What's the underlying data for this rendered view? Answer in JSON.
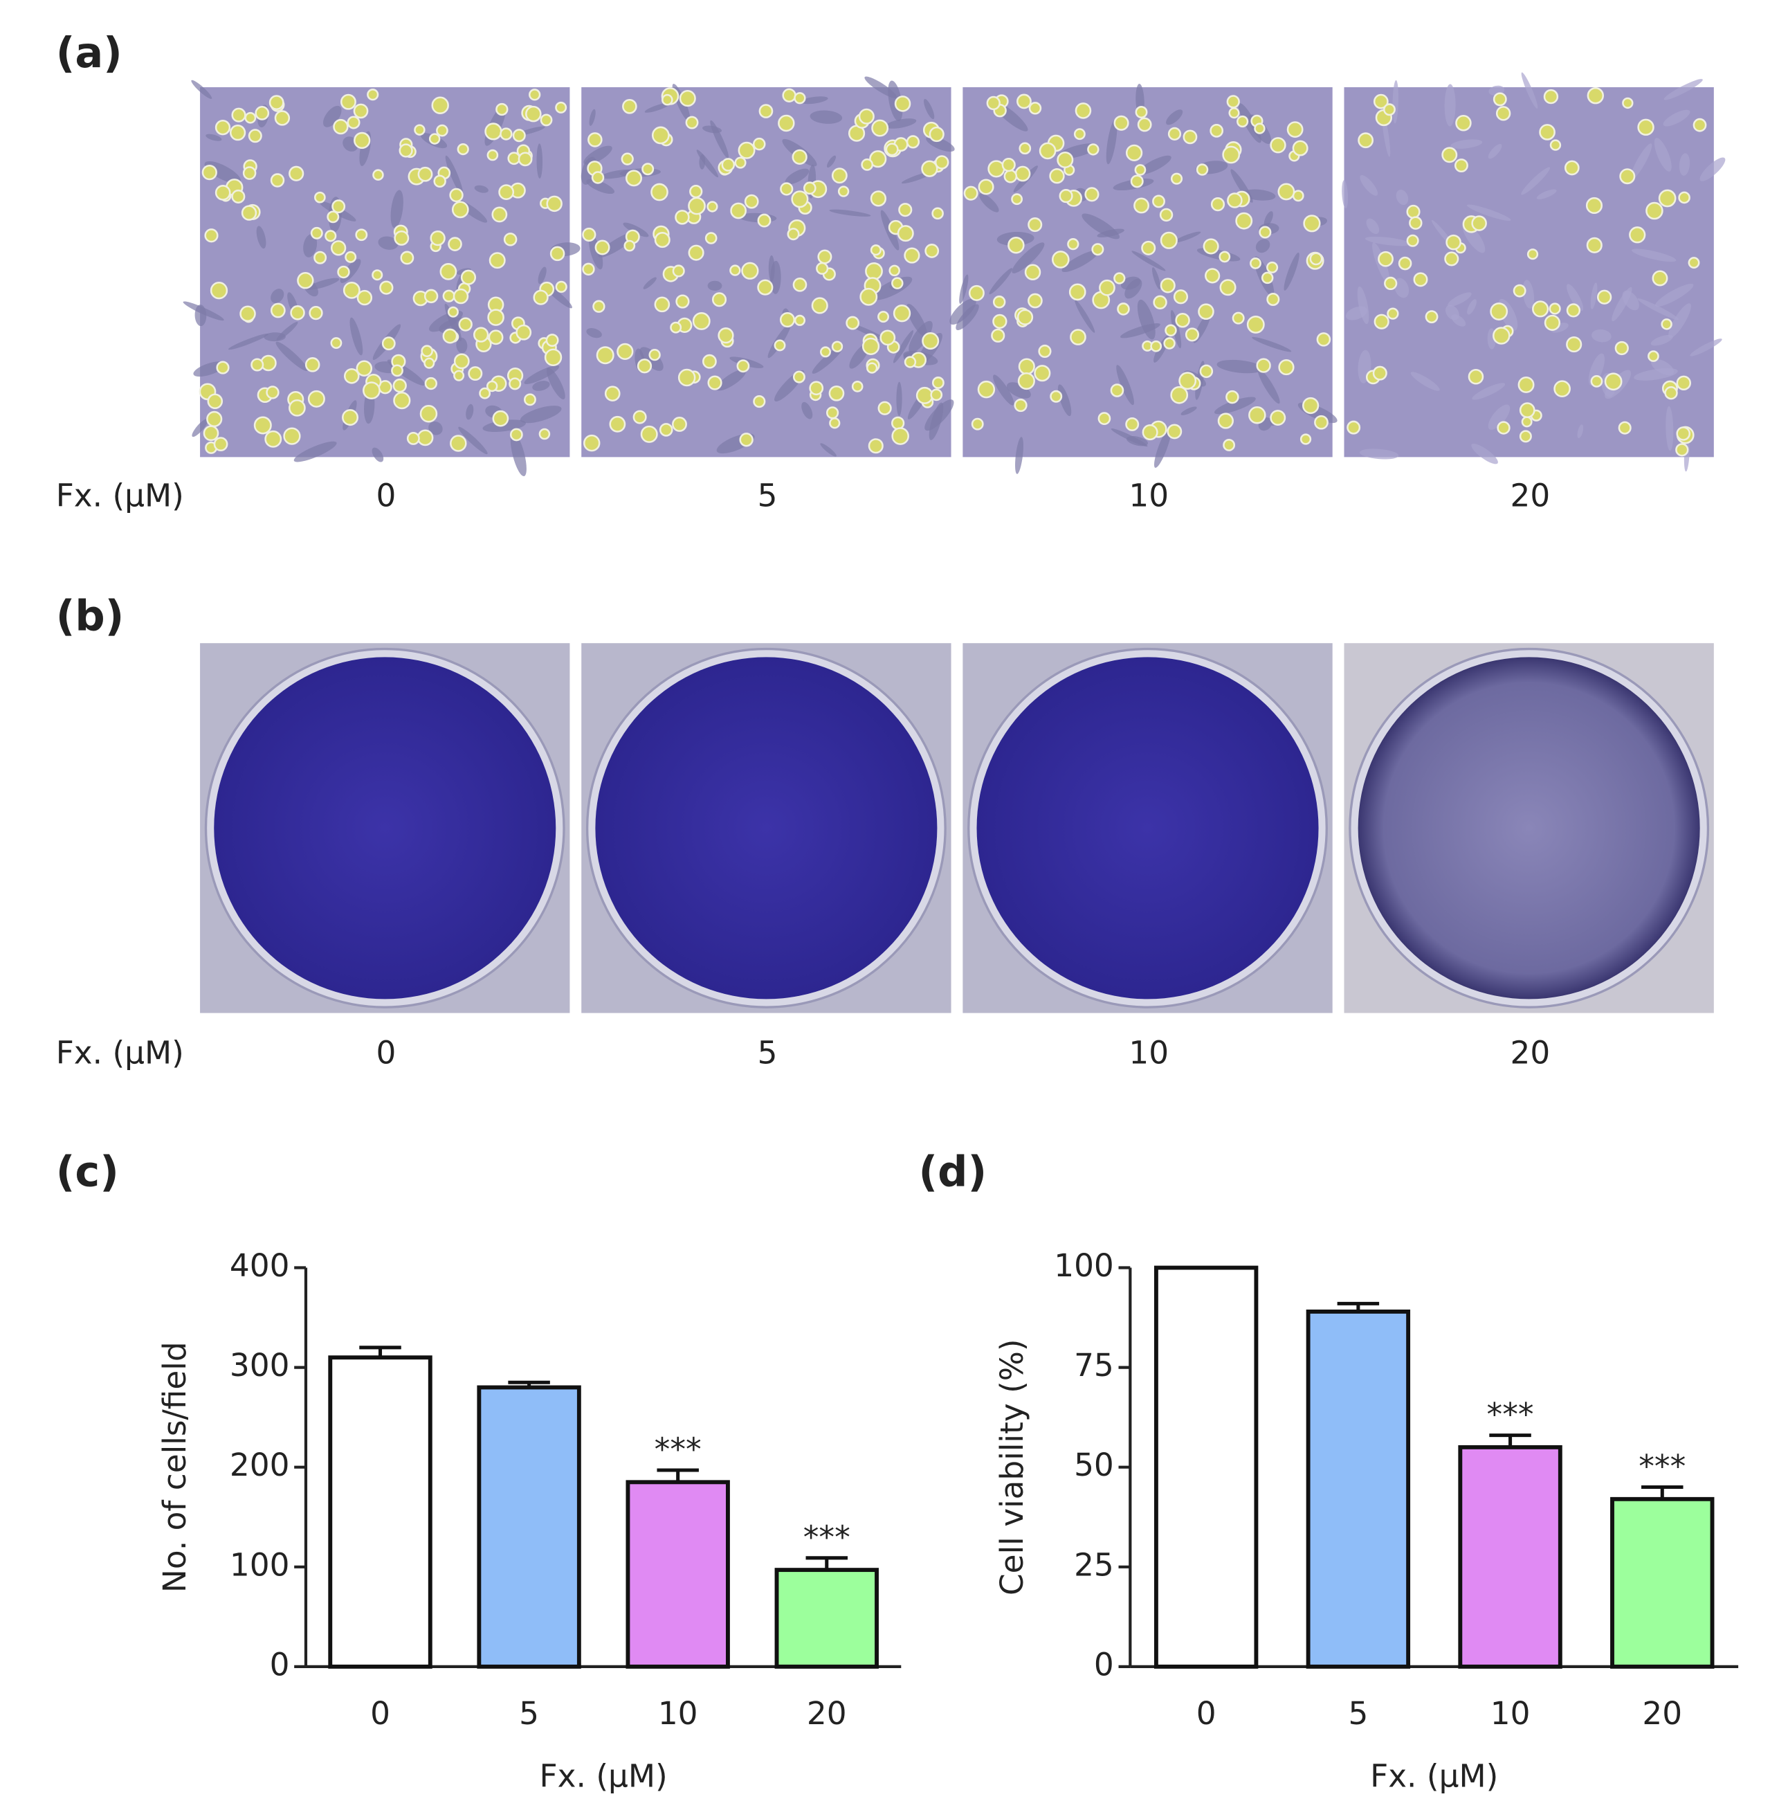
{
  "figure": {
    "panels": [
      {
        "label": "(a)",
        "axis_label": "Fx. (µM)",
        "doses": [
          "0",
          "5",
          "10",
          "20"
        ]
      },
      {
        "label": "(b)",
        "axis_label": "Fx. (µM)",
        "doses": [
          "0",
          "5",
          "10",
          "20"
        ]
      }
    ]
  },
  "chart_data": [
    {
      "type": "bar",
      "panel_label": "(c)",
      "ylabel": "No. of cells/field",
      "xlabel": "Fx. (µM)",
      "categories": [
        "0",
        "5",
        "10",
        "20"
      ],
      "values": [
        310,
        280,
        185,
        97
      ],
      "errors": [
        10,
        5,
        12,
        12
      ],
      "colors": [
        "#ffffff",
        "#8fbdf8",
        "#e08af3",
        "#9cff9c"
      ],
      "annotations": [
        null,
        null,
        "***",
        "***"
      ],
      "ylim": [
        0,
        400
      ],
      "yticks": [
        0,
        100,
        200,
        300,
        400
      ]
    },
    {
      "type": "bar",
      "panel_label": "(d)",
      "ylabel": "Cell viability (%)",
      "xlabel": "Fx. (µM)",
      "categories": [
        "0",
        "5",
        "10",
        "20"
      ],
      "values": [
        100,
        89,
        55,
        42
      ],
      "errors": [
        0,
        2,
        3,
        3
      ],
      "colors": [
        "#ffffff",
        "#8fbdf8",
        "#e08af3",
        "#9cff9c"
      ],
      "annotations": [
        null,
        null,
        "***",
        "***"
      ],
      "ylim": [
        0,
        100
      ],
      "yticks": [
        0,
        25,
        50,
        75,
        100
      ]
    }
  ]
}
